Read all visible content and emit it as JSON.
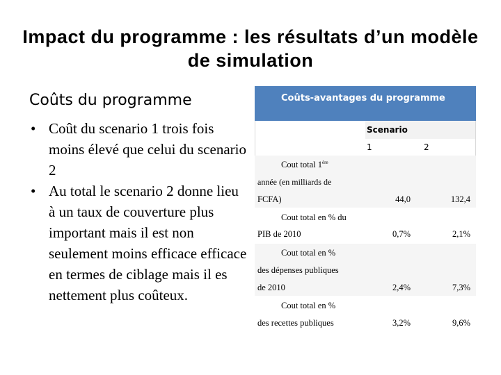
{
  "title": "Impact du programme : les résultats d’un modèle de simulation",
  "left_heading": "Coûts du programme",
  "bullets": [
    "Coût du scenario 1 trois fois moins élevé que celui du scenario 2",
    "Au total le scenario 2 donne lieu à un taux de couverture plus important mais il est non seulement moins efficace  efficace en termes de ciblage mais il es nettement plus coûteux."
  ],
  "bullet_glyph": "•",
  "table": {
    "header": "Coûts-avantages du programme",
    "scenario_label": "Scenario",
    "col1": "1",
    "col2": "2",
    "rows": [
      {
        "line1": "Cout total 1",
        "sup": "ère",
        "line2": "année (en milliards de",
        "line3": "FCFA)",
        "v1": "44,0",
        "v2": "132,4"
      },
      {
        "line1": "Cout total en % du",
        "line2": "PIB de 2010",
        "v1": "0,7%",
        "v2": "2,1%"
      },
      {
        "line1": "Cout total en %",
        "line2": "des dépenses publiques",
        "line3": "de 2010",
        "v1": "2,4%",
        "v2": "7,3%"
      },
      {
        "line1": "Cout total en %",
        "line2": "des recettes publiques",
        "v1": "3,2%",
        "v2": "9,6%"
      }
    ]
  },
  "colors": {
    "header_bg": "#4f81bd"
  }
}
